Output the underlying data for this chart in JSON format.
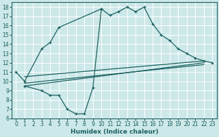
{
  "bg_color": "#cde8e8",
  "line_color": "#1a6060",
  "grid_color": "#ffffff",
  "xlabel": "Humidex (Indice chaleur)",
  "xlim": [
    -0.5,
    23.5
  ],
  "ylim": [
    6,
    18.5
  ],
  "xticks": [
    0,
    1,
    2,
    3,
    4,
    5,
    6,
    7,
    8,
    9,
    10,
    11,
    12,
    13,
    14,
    15,
    16,
    17,
    18,
    19,
    20,
    21,
    22,
    23
  ],
  "yticks": [
    6,
    7,
    8,
    9,
    10,
    11,
    12,
    13,
    14,
    15,
    16,
    17,
    18
  ],
  "top_x": [
    0,
    1,
    3,
    4,
    5,
    10,
    11,
    12,
    13,
    14,
    15,
    16,
    17,
    18,
    19,
    20,
    21,
    22,
    23
  ],
  "top_y": [
    11,
    10,
    13.5,
    14.2,
    15.8,
    17.8,
    17.1,
    17.5,
    18.0,
    17.5,
    18.0,
    16.2,
    15.0,
    14.4,
    13.5,
    13.0,
    12.5,
    12.2,
    12.0
  ],
  "zigzag_x": [
    1,
    3,
    4,
    5,
    6,
    7,
    8,
    9,
    10
  ],
  "zigzag_y": [
    9.5,
    9.0,
    8.5,
    8.5,
    7.0,
    6.5,
    6.5,
    9.3,
    17.8
  ],
  "line1_x": [
    1,
    22
  ],
  "line1_y": [
    9.5,
    12.0
  ],
  "line2_x": [
    1,
    22
  ],
  "line2_y": [
    9.8,
    11.8
  ],
  "line3_x": [
    1,
    22
  ],
  "line3_y": [
    10.5,
    12.2
  ]
}
